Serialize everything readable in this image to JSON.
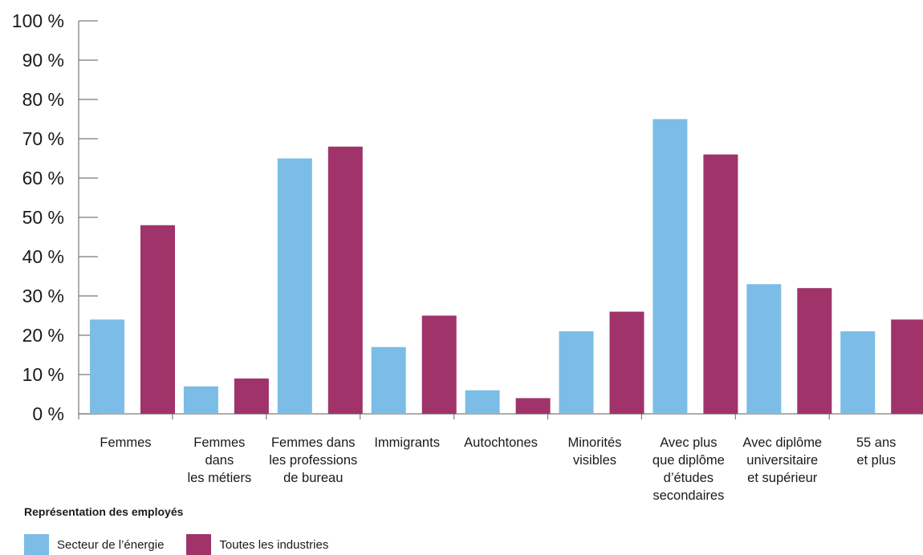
{
  "chart_data": {
    "type": "bar",
    "title": "",
    "xlabel": "",
    "ylabel": "",
    "ylim": [
      0,
      100
    ],
    "y_ticks": [
      0,
      10,
      20,
      30,
      40,
      50,
      60,
      70,
      80,
      90,
      100
    ],
    "y_tick_suffix": " %",
    "categories": [
      [
        "Femmes"
      ],
      [
        "Femmes",
        "dans",
        "les métiers"
      ],
      [
        "Femmes dans",
        "les professions",
        "de bureau"
      ],
      [
        "Immigrants"
      ],
      [
        "Autochtones"
      ],
      [
        "Minorités",
        "visibles"
      ],
      [
        "Avec plus",
        "que diplôme",
        "d’études",
        "secondaires"
      ],
      [
        "Avec diplôme",
        "universitaire",
        "et supérieur"
      ],
      [
        "55 ans",
        "et plus"
      ]
    ],
    "series": [
      {
        "name": "Secteur de l’énergie",
        "color": "#7bbde6",
        "values": [
          24,
          7,
          65,
          17,
          6,
          21,
          75,
          33,
          21
        ]
      },
      {
        "name": "Toutes les industries",
        "color": "#a0336a",
        "values": [
          48,
          9,
          68,
          25,
          4,
          26,
          66,
          32,
          24
        ]
      }
    ],
    "grid": false,
    "legend": {
      "title": "Représentation des employés",
      "placement": "bottom-left"
    }
  }
}
